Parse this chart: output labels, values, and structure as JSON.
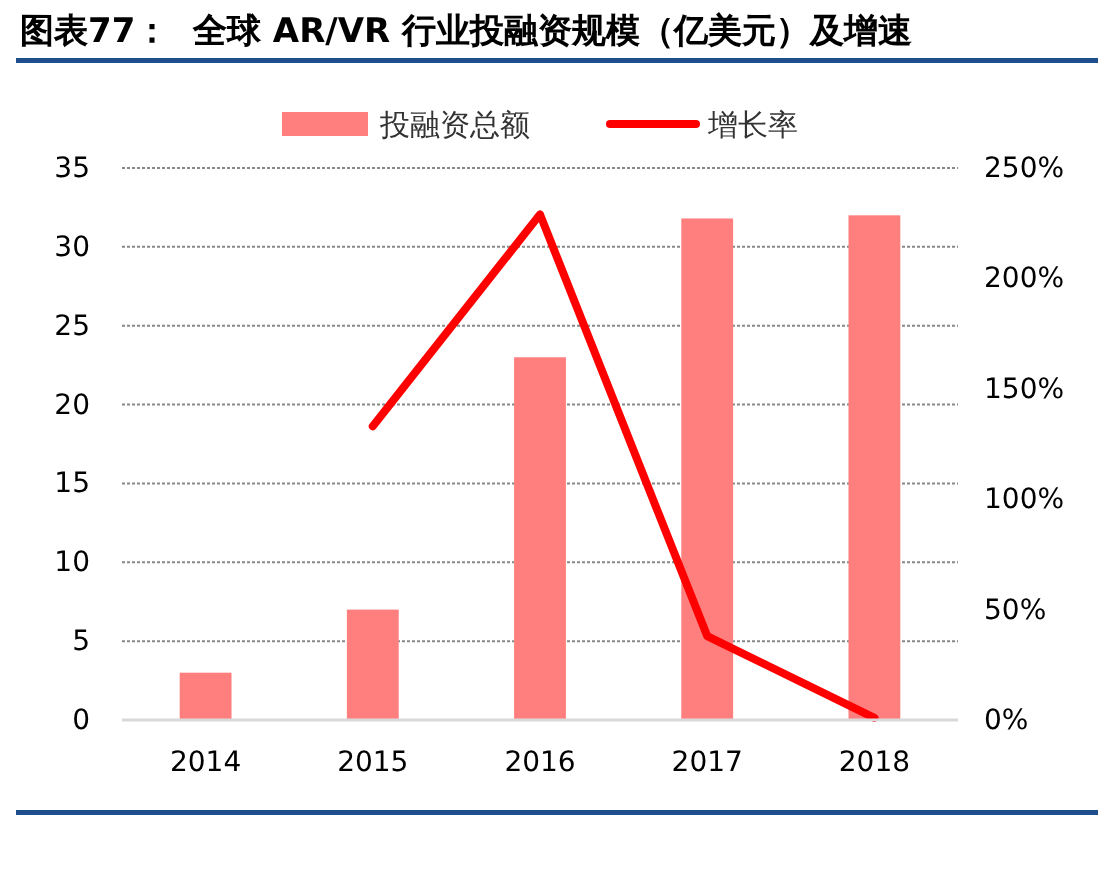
{
  "chart_data": {
    "type": "bar",
    "title": "图表77：  全球 AR/VR 行业投融资规模（亿美元）及增速",
    "categories": [
      "2014",
      "2015",
      "2016",
      "2017",
      "2018"
    ],
    "series": [
      {
        "name": "投融资总额",
        "color": "#ff7f7f",
        "values": [
          3,
          7,
          23,
          31.8,
          32
        ]
      },
      {
        "name": "增长率",
        "type": "line",
        "axis": "y2",
        "color": "#ff0000",
        "values": [
          null,
          133,
          229,
          38,
          1
        ]
      }
    ],
    "ylim": [
      0,
      35
    ],
    "yticks": [
      0,
      5,
      10,
      15,
      20,
      25,
      30,
      35
    ],
    "y2lim": [
      0,
      250
    ],
    "y2ticks": [
      {
        "value": 0,
        "label": "0%"
      },
      {
        "value": 50,
        "label": "50%"
      },
      {
        "value": 100,
        "label": "100%"
      },
      {
        "value": 150,
        "label": "150%"
      },
      {
        "value": 200,
        "label": "200%"
      },
      {
        "value": 250,
        "label": "250%"
      }
    ],
    "grid": "y",
    "legend": "top"
  }
}
